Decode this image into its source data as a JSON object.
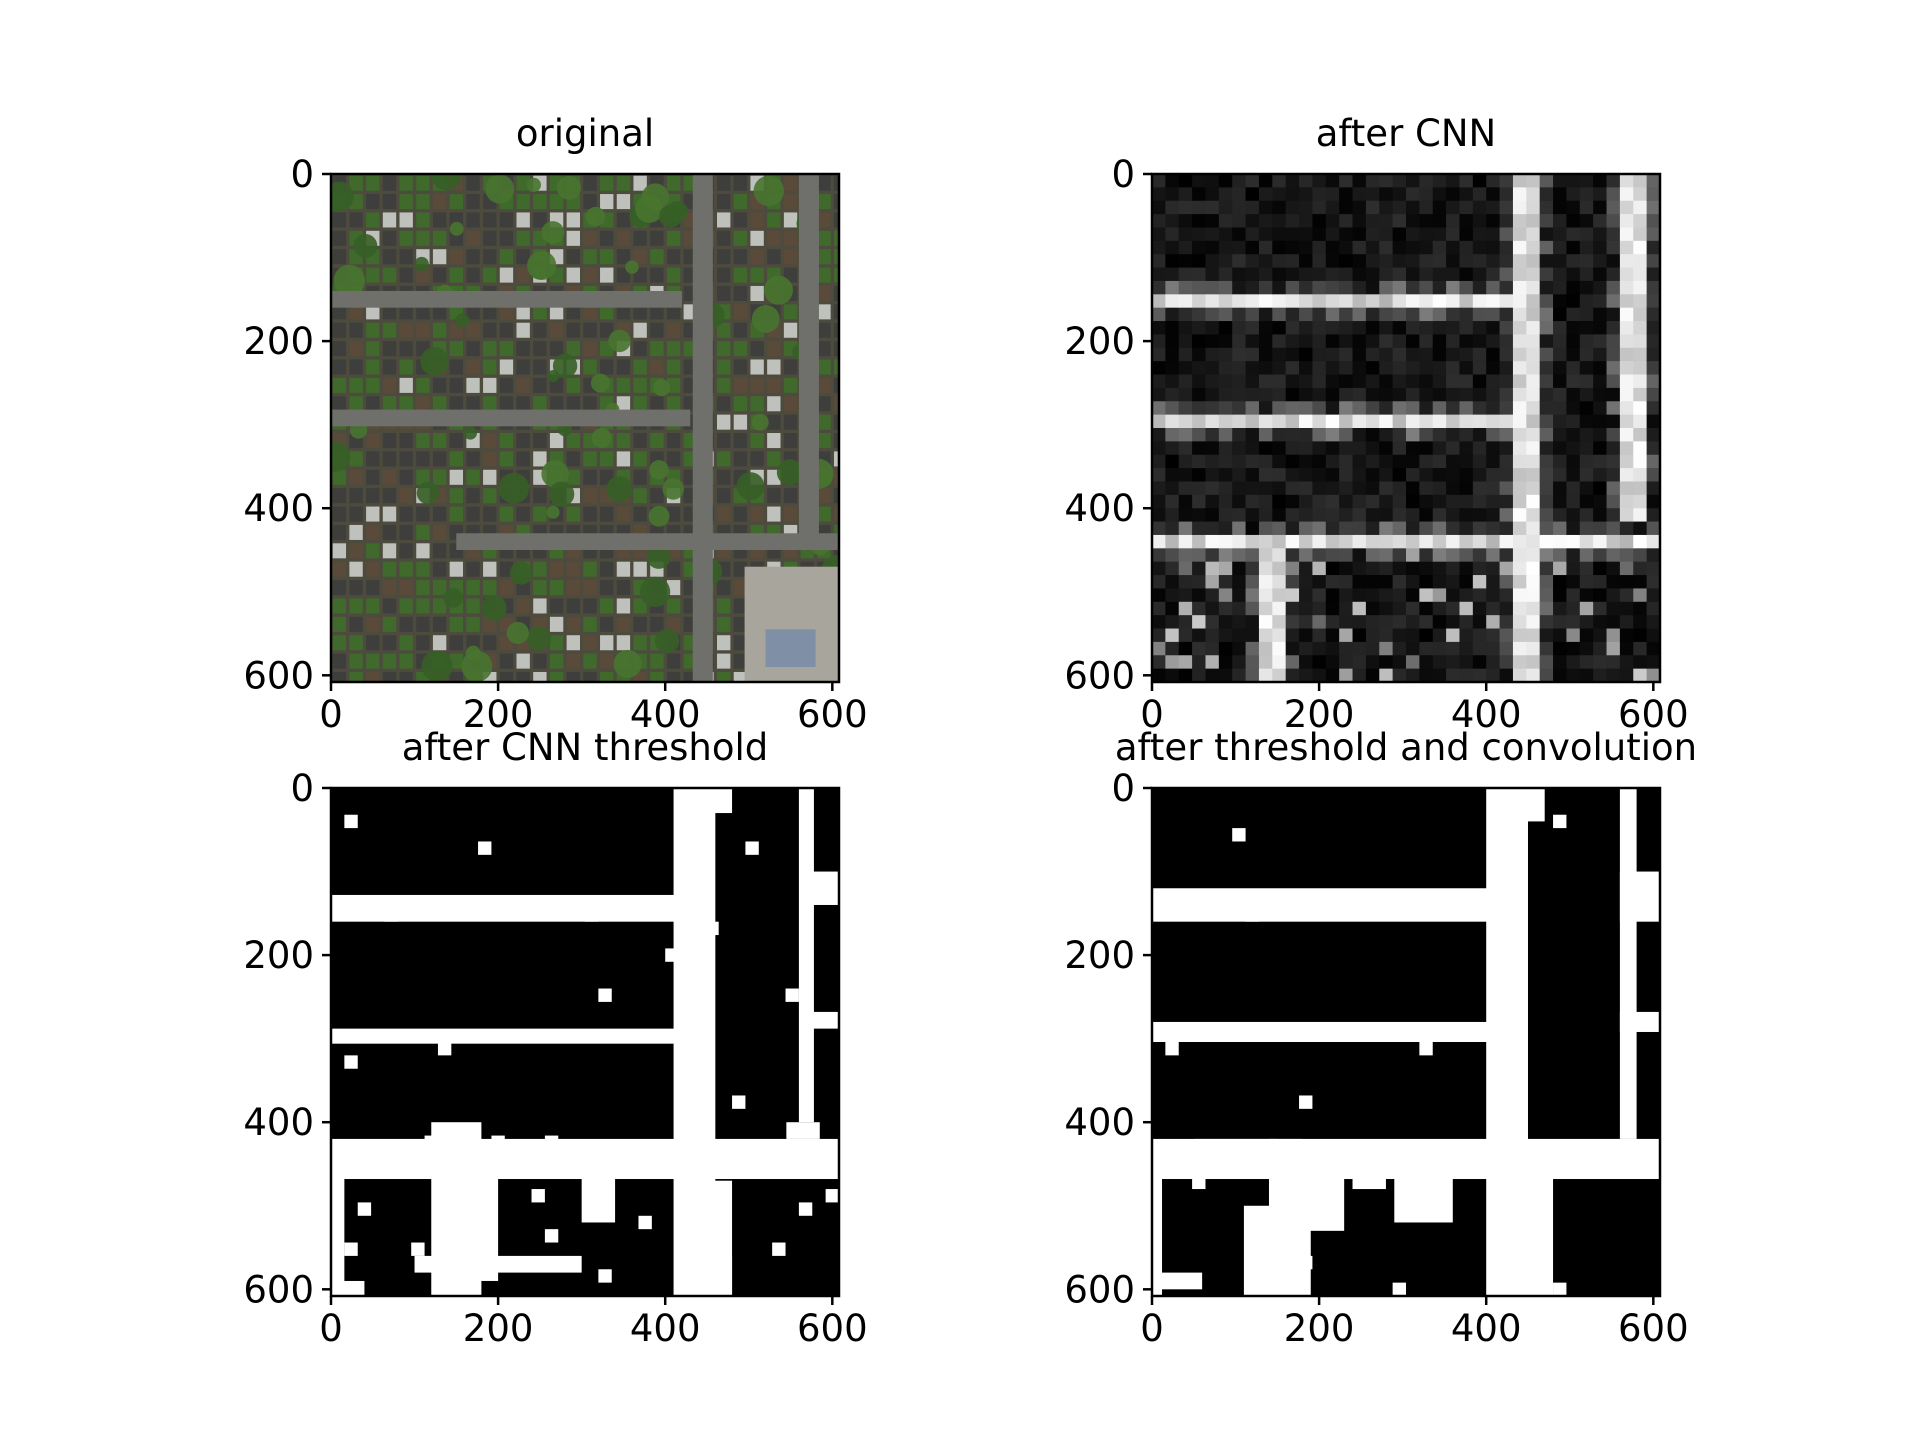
{
  "chart_data": [
    {
      "type": "heatmap",
      "title": "original",
      "image": "aerial-photograph",
      "xlim": [
        0,
        608
      ],
      "ylim": [
        608,
        0
      ],
      "xticks": [
        "0",
        "200",
        "400",
        "600"
      ],
      "yticks": [
        "0",
        "200",
        "400",
        "600"
      ],
      "grid": false,
      "roads": {
        "horizontal": [
          {
            "y": 150,
            "x0": 0,
            "x1": 420
          },
          {
            "y": 292,
            "x0": 0,
            "x1": 430
          },
          {
            "y": 440,
            "x0": 150,
            "x1": 608
          }
        ],
        "vertical": [
          {
            "x": 445,
            "y0": 0,
            "y1": 608
          },
          {
            "x": 572,
            "y0": 0,
            "y1": 440
          }
        ]
      },
      "colors": {
        "road": "#6f706b",
        "roof_dark": "#3e3f3c",
        "roof_light": "#bfc1bd",
        "tree": "#3f6a2c",
        "ground": "#4d4b3e"
      }
    },
    {
      "type": "heatmap",
      "title": "after CNN",
      "colormap": "gray",
      "grid_cells": 38,
      "xlim": [
        0,
        608
      ],
      "ylim": [
        608,
        0
      ],
      "xticks": [
        "0",
        "200",
        "400",
        "600"
      ],
      "yticks": [
        "0",
        "200",
        "400",
        "600"
      ],
      "grid": false,
      "bright_structures": {
        "horizontal": [
          {
            "y": 150,
            "x0": 0,
            "x1": 440
          },
          {
            "y": 295,
            "x0": 0,
            "x1": 440
          },
          {
            "y": 440,
            "x0": 0,
            "x1": 608
          }
        ],
        "vertical": [
          {
            "x": 445,
            "y0": 0,
            "y1": 608
          },
          {
            "x": 572,
            "y0": 0,
            "y1": 420
          },
          {
            "x": 150,
            "y0": 440,
            "y1": 608
          }
        ]
      }
    },
    {
      "type": "heatmap",
      "title": "after CNN threshold",
      "colormap": "binary",
      "xlim": [
        0,
        608
      ],
      "ylim": [
        608,
        0
      ],
      "xticks": [
        "0",
        "200",
        "400",
        "600"
      ],
      "yticks": [
        "0",
        "200",
        "400",
        "600"
      ],
      "grid": false
    },
    {
      "type": "heatmap",
      "title": "after threshold and convolution",
      "colormap": "binary",
      "xlim": [
        0,
        608
      ],
      "ylim": [
        608,
        0
      ],
      "xticks": [
        "0",
        "200",
        "400",
        "600"
      ],
      "yticks": [
        "0",
        "200",
        "400",
        "600"
      ],
      "grid": false
    }
  ]
}
